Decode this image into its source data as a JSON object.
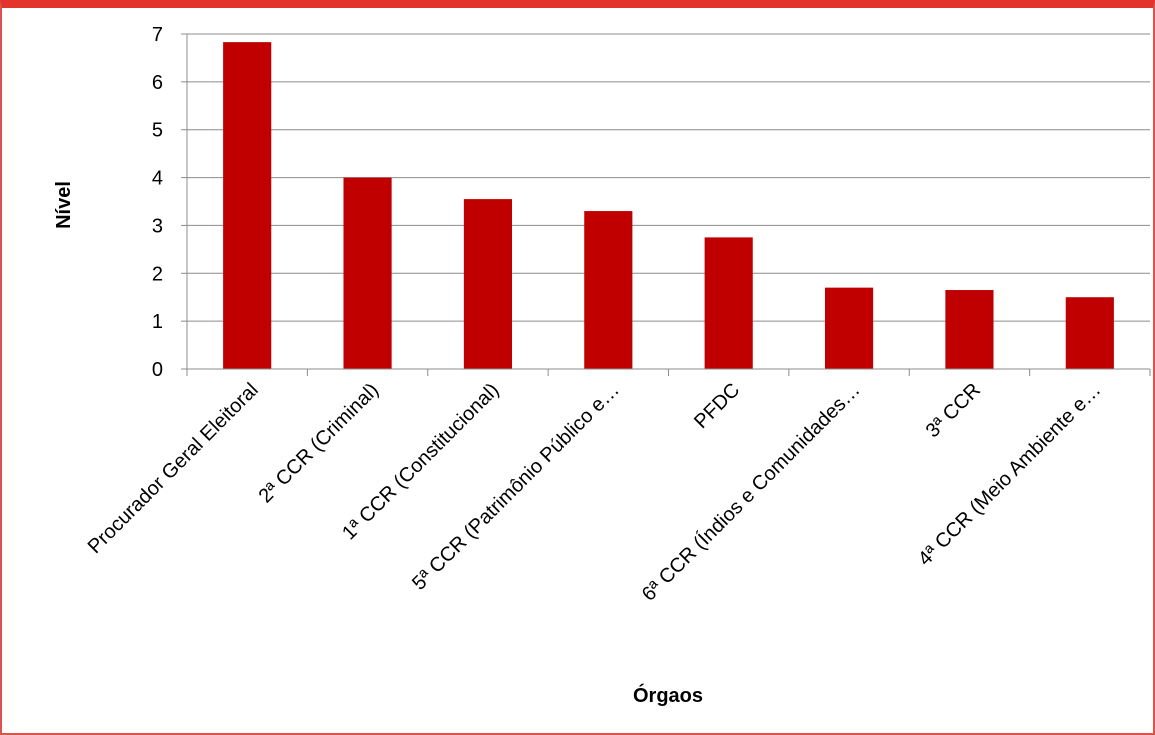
{
  "chart_data": {
    "type": "bar",
    "categories": [
      "Procurador Geral Eleitoral",
      "2ª CCR (Criminal)",
      "1ª CCR (Constitucional)",
      "5ª CCR (Patrimônio Público e…",
      "PFDC",
      "6ª CCR (Índios e Comunidades…",
      "3ª CCR",
      "4ª CCR (Meio Ambiente e…"
    ],
    "values": [
      6.83,
      4.0,
      3.55,
      3.3,
      2.75,
      1.7,
      1.65,
      1.5
    ],
    "yticks": [
      "0",
      "1",
      "2",
      "3",
      "4",
      "5",
      "6",
      "7"
    ],
    "ylim": [
      0,
      7
    ],
    "xlabel": "Órgaos",
    "ylabel": "Nível",
    "grid": true,
    "legend": "none",
    "bar_color": "#c00000",
    "grid_color": "#8c8c8c",
    "frame_color": "#e2342c"
  }
}
